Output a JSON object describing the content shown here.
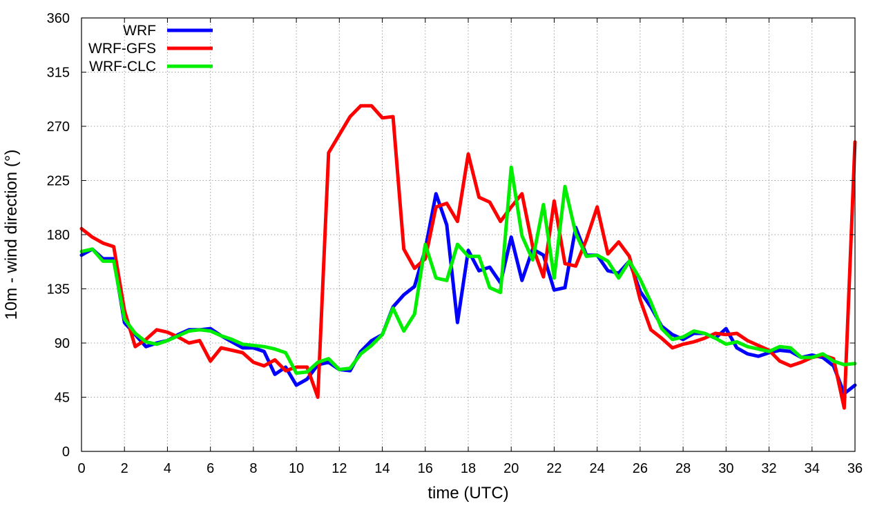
{
  "chart_data": {
    "type": "line",
    "title": "",
    "xlabel": "time (UTC)",
    "ylabel": "10m - wind direction (°)",
    "xlim": [
      0,
      36
    ],
    "ylim": [
      0,
      360
    ],
    "xticks": [
      0,
      2,
      4,
      6,
      8,
      10,
      12,
      14,
      16,
      18,
      20,
      22,
      24,
      26,
      28,
      30,
      32,
      34,
      36
    ],
    "yticks": [
      0,
      45,
      90,
      135,
      180,
      225,
      270,
      315,
      360
    ],
    "grid": true,
    "legend_position": "top-left",
    "series": [
      {
        "name": "WRF",
        "color": "#0000ff",
        "x": [
          0,
          0.5,
          1,
          1.5,
          2,
          2.5,
          3,
          3.5,
          4,
          4.5,
          5,
          5.5,
          6,
          6.5,
          7,
          7.5,
          8,
          8.5,
          9,
          9.5,
          10,
          10.5,
          11,
          11.5,
          12,
          12.5,
          13,
          13.5,
          14,
          14.5,
          15,
          15.5,
          16,
          16.5,
          17,
          17.5,
          18,
          18.5,
          19,
          19.5,
          20,
          20.5,
          21,
          21.5,
          22,
          22.5,
          23,
          23.5,
          24,
          24.5,
          25,
          25.5,
          26,
          26.5,
          27,
          27.5,
          28,
          28.5,
          29,
          29.5,
          30,
          30.5,
          31,
          31.5,
          32,
          32.5,
          33,
          33.5,
          34,
          34.5,
          35,
          35.5,
          36
        ],
        "y": [
          163,
          168,
          160,
          160,
          107,
          97,
          87,
          90,
          92,
          97,
          101,
          101,
          102,
          96,
          91,
          86,
          86,
          83,
          64,
          70,
          55,
          60,
          72,
          74,
          68,
          67,
          83,
          92,
          97,
          120,
          130,
          137,
          168,
          214,
          188,
          107,
          167,
          150,
          153,
          140,
          178,
          142,
          168,
          163,
          134,
          136,
          186,
          163,
          163,
          150,
          148,
          158,
          133,
          120,
          104,
          97,
          93,
          98,
          98,
          94,
          102,
          86,
          81,
          79,
          82,
          84,
          83,
          78,
          80,
          78,
          71,
          48,
          55
        ]
      },
      {
        "name": "WRF-GFS",
        "color": "#ff0000",
        "x": [
          0,
          0.5,
          1,
          1.5,
          2,
          2.5,
          3,
          3.5,
          4,
          4.5,
          5,
          5.5,
          6,
          6.5,
          7,
          7.5,
          8,
          8.5,
          9,
          9.5,
          10,
          10.5,
          11,
          11.5,
          12,
          12.5,
          13,
          13.5,
          14,
          14.5,
          15,
          15.5,
          16,
          16.5,
          17,
          17.5,
          18,
          18.5,
          19,
          19.5,
          20,
          20.5,
          21,
          21.5,
          22,
          22.5,
          23,
          23.5,
          24,
          24.5,
          25,
          25.5,
          26,
          26.5,
          27,
          27.5,
          28,
          28.5,
          29,
          29.5,
          30,
          30.5,
          31,
          31.5,
          32,
          32.5,
          33,
          33.5,
          34,
          34.5,
          35,
          35.5,
          36
        ],
        "y": [
          185,
          178,
          173,
          170,
          117,
          87,
          93,
          101,
          99,
          95,
          90,
          92,
          75,
          86,
          84,
          82,
          74,
          71,
          76,
          67,
          70,
          70,
          45,
          248,
          263,
          278,
          287,
          287,
          277,
          278,
          168,
          152,
          160,
          203,
          206,
          191,
          247,
          211,
          207,
          191,
          203,
          214,
          170,
          145,
          208,
          156,
          154,
          176,
          203,
          164,
          174,
          162,
          126,
          101,
          94,
          86,
          89,
          91,
          94,
          98,
          97,
          98,
          92,
          88,
          84,
          75,
          71,
          74,
          78,
          80,
          77,
          36,
          257
        ]
      },
      {
        "name": "WRF-CLC",
        "color": "#00ee00",
        "x": [
          0,
          0.5,
          1,
          1.5,
          2,
          2.5,
          3,
          3.5,
          4,
          4.5,
          5,
          5.5,
          6,
          6.5,
          7,
          7.5,
          8,
          8.5,
          9,
          9.5,
          10,
          10.5,
          11,
          11.5,
          12,
          12.5,
          13,
          13.5,
          14,
          14.5,
          15,
          15.5,
          16,
          16.5,
          17,
          17.5,
          18,
          18.5,
          19,
          19.5,
          20,
          20.5,
          21,
          21.5,
          22,
          22.5,
          23,
          23.5,
          24,
          24.5,
          25,
          25.5,
          26,
          26.5,
          27,
          27.5,
          28,
          28.5,
          29,
          29.5,
          30,
          30.5,
          31,
          31.5,
          32,
          32.5,
          33,
          33.5,
          34,
          34.5,
          35,
          35.5,
          36
        ],
        "y": [
          166,
          168,
          158,
          158,
          110,
          98,
          91,
          89,
          92,
          96,
          100,
          101,
          100,
          96,
          93,
          89,
          88,
          87,
          85,
          82,
          65,
          66,
          74,
          77,
          68,
          69,
          81,
          88,
          97,
          119,
          100,
          114,
          172,
          144,
          142,
          172,
          162,
          162,
          136,
          132,
          236,
          179,
          159,
          205,
          144,
          220,
          181,
          162,
          163,
          158,
          144,
          158,
          143,
          124,
          102,
          93,
          95,
          100,
          98,
          94,
          89,
          91,
          87,
          85,
          83,
          87,
          86,
          78,
          78,
          81,
          75,
          72,
          73
        ]
      }
    ]
  }
}
